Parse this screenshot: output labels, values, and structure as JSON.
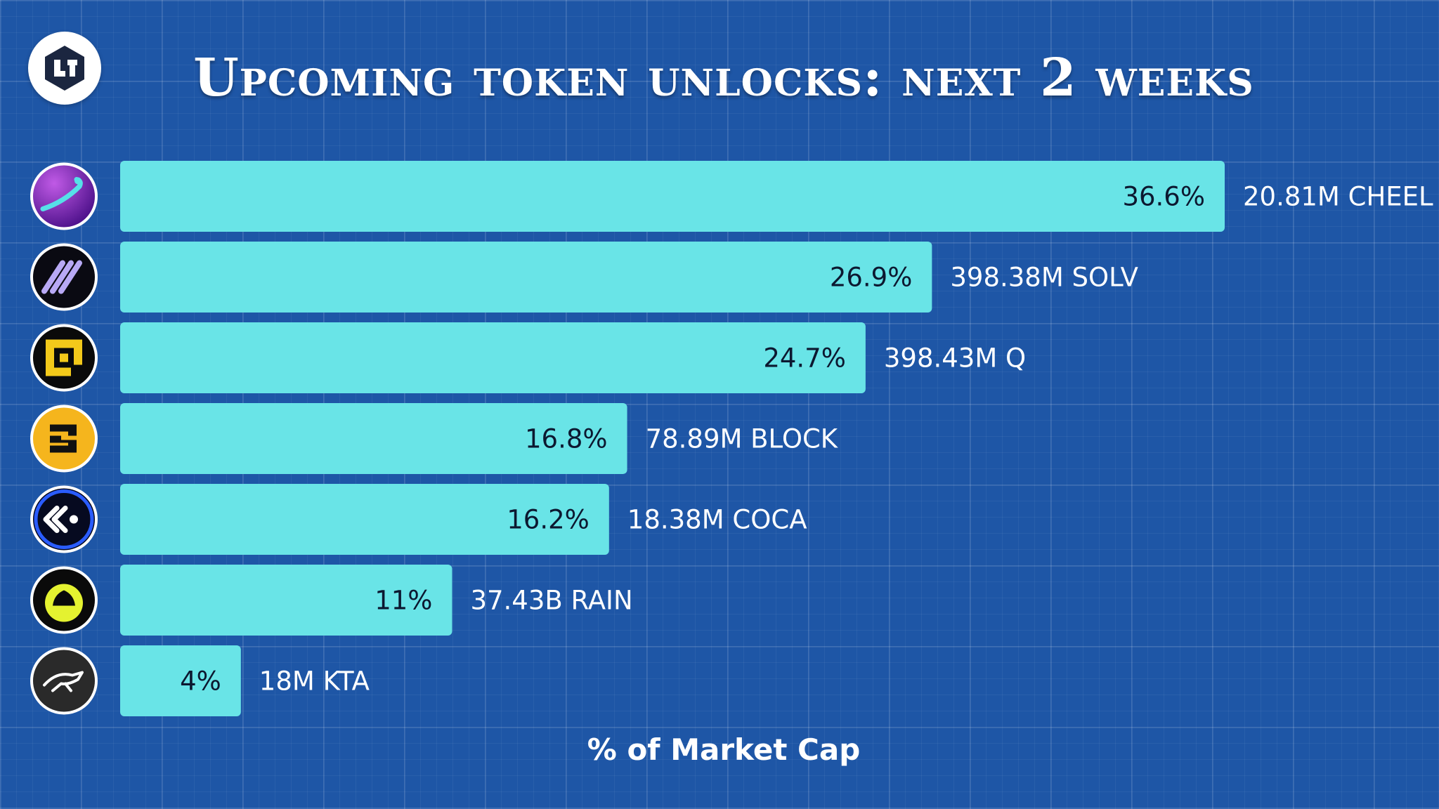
{
  "chart_data": {
    "type": "bar",
    "orientation": "horizontal",
    "title": "Upcoming token unlocks: next 2 weeks",
    "xlabel": "% of Market Cap",
    "value_suffix": "%",
    "categories": [
      "20.81M CHEEL",
      "398.38M SOLV",
      "398.43M Q",
      "78.89M BLOCK",
      "18.38M COCA",
      "37.43B RAIN",
      "18M KTA"
    ],
    "values": [
      36.6,
      26.9,
      24.7,
      16.8,
      16.2,
      11,
      4
    ],
    "value_labels": [
      "36.6%",
      "26.9%",
      "24.7%",
      "16.8%",
      "16.2%",
      "11%",
      "4%"
    ],
    "icons": [
      "cheel-token-icon",
      "solv-token-icon",
      "q-token-icon",
      "block-token-icon",
      "coca-token-icon",
      "rain-token-icon",
      "kta-token-icon"
    ],
    "xlim": [
      0,
      36.6
    ],
    "grid": true,
    "colors": {
      "bar": "#69e4e7",
      "background": "#1e56a6",
      "value_text": "#0c1830",
      "label_text": "#ffffff"
    }
  }
}
